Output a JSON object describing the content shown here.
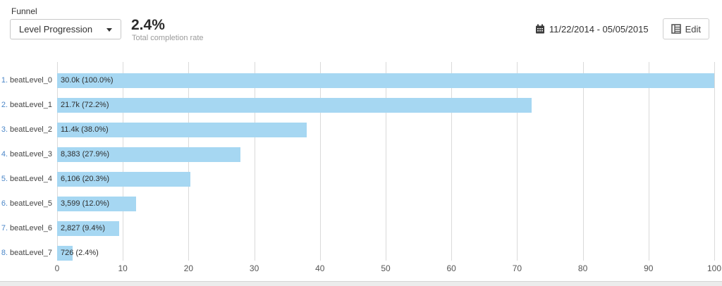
{
  "header": {
    "section_label": "Funnel",
    "dropdown": {
      "selected": "Level Progression"
    },
    "stat": {
      "value": "2.4%",
      "caption": "Total completion rate"
    },
    "date_range": "11/22/2014 - 05/05/2015",
    "edit_label": "Edit"
  },
  "colors": {
    "bar": "#a6d7f2",
    "grid": "#dadada",
    "row_index": "#4a86c8",
    "axis_text": "#555555"
  },
  "icons": {
    "calendar": "calendar-icon",
    "edit": "table-edit-icon",
    "dropdown_caret": "chevron-down-icon"
  },
  "chart_data": {
    "type": "bar",
    "orientation": "horizontal",
    "title": "Level Progression funnel",
    "xlabel": "",
    "ylabel": "",
    "xlim": [
      0,
      100
    ],
    "x_ticks": [
      0,
      10,
      20,
      30,
      40,
      50,
      60,
      70,
      80,
      90,
      100
    ],
    "grid": true,
    "rows": [
      {
        "index": "1.",
        "label": "beatLevel_0",
        "value_text": "30.0k",
        "pct_text": "(100.0%)",
        "pct": 100.0
      },
      {
        "index": "2.",
        "label": "beatLevel_1",
        "value_text": "21.7k",
        "pct_text": "(72.2%)",
        "pct": 72.2
      },
      {
        "index": "3.",
        "label": "beatLevel_2",
        "value_text": "11.4k",
        "pct_text": "(38.0%)",
        "pct": 38.0
      },
      {
        "index": "4.",
        "label": "beatLevel_3",
        "value_text": "8,383",
        "pct_text": "(27.9%)",
        "pct": 27.9
      },
      {
        "index": "5.",
        "label": "beatLevel_4",
        "value_text": "6,106",
        "pct_text": "(20.3%)",
        "pct": 20.3
      },
      {
        "index": "6.",
        "label": "beatLevel_5",
        "value_text": "3,599",
        "pct_text": "(12.0%)",
        "pct": 12.0
      },
      {
        "index": "7.",
        "label": "beatLevel_6",
        "value_text": "2,827",
        "pct_text": "(9.4%)",
        "pct": 9.4
      },
      {
        "index": "8.",
        "label": "beatLevel_7",
        "value_text": "726",
        "pct_text": "(2.4%)",
        "pct": 2.4
      }
    ]
  }
}
